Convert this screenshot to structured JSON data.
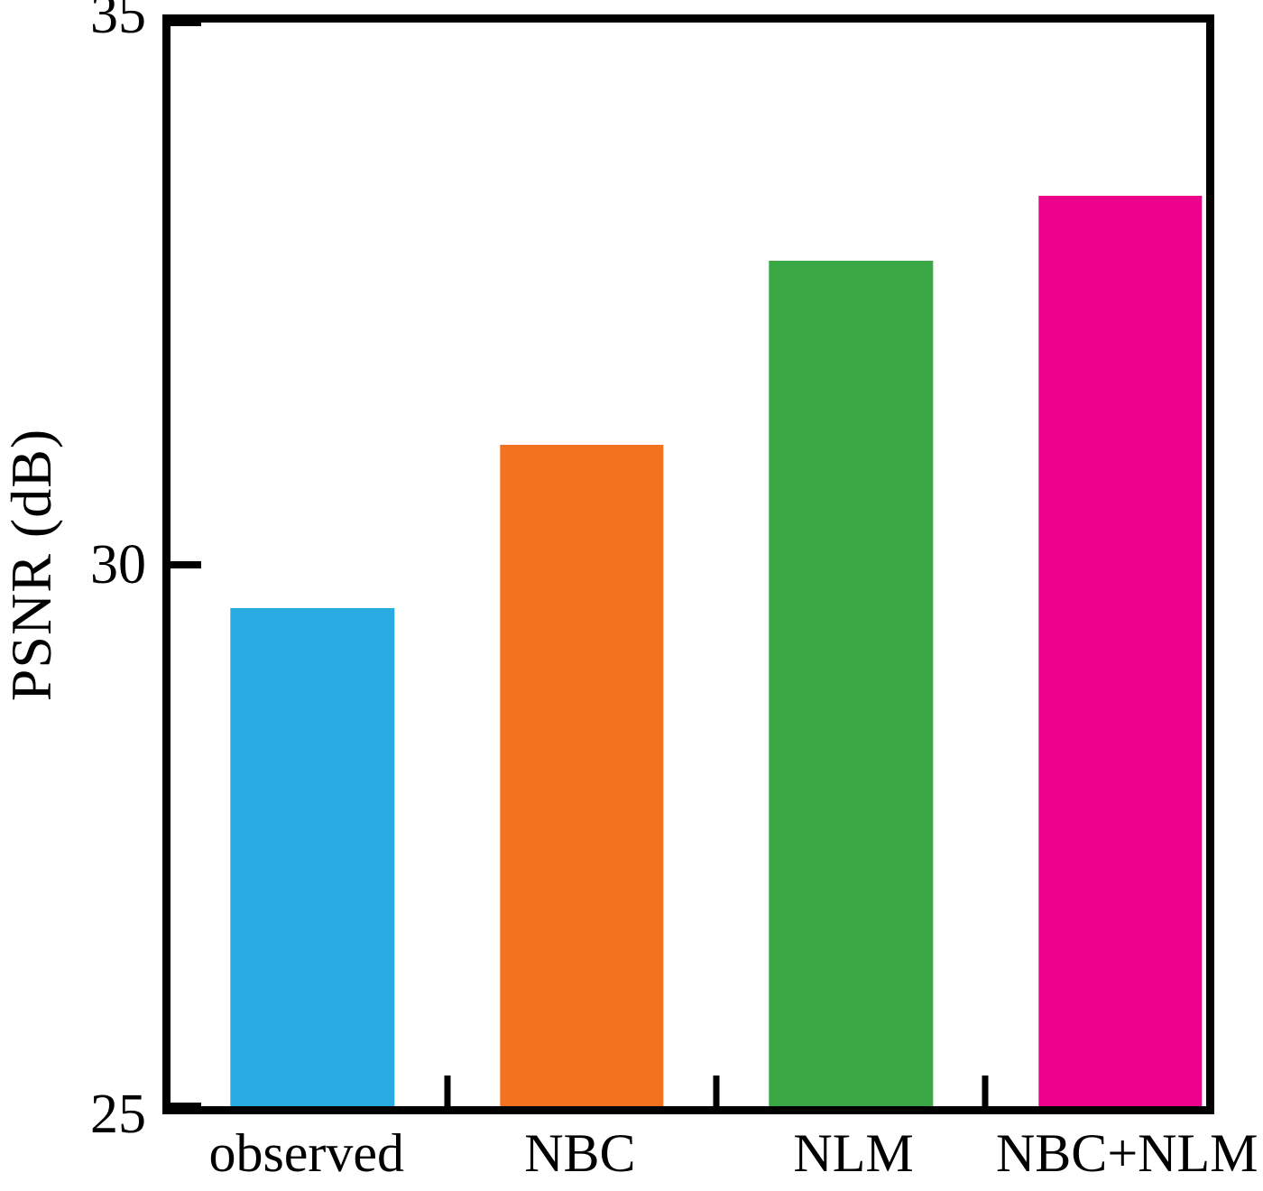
{
  "figure": {
    "background": "#ffffff"
  },
  "chart_data": {
    "type": "bar",
    "title": "",
    "xlabel": "",
    "ylabel": "PSNR (dB)",
    "categories": [
      "observed",
      "NBC",
      "NLM",
      "NBC+NLM"
    ],
    "values": [
      29.6,
      31.1,
      32.8,
      33.4
    ],
    "colors": [
      "#29abe2",
      "#f3721f",
      "#39a845",
      "#ec008c"
    ],
    "ylim": [
      25,
      35
    ],
    "yticks": [
      25,
      30,
      35
    ],
    "grid": false,
    "legend": "none",
    "axis_color": "#000000"
  }
}
